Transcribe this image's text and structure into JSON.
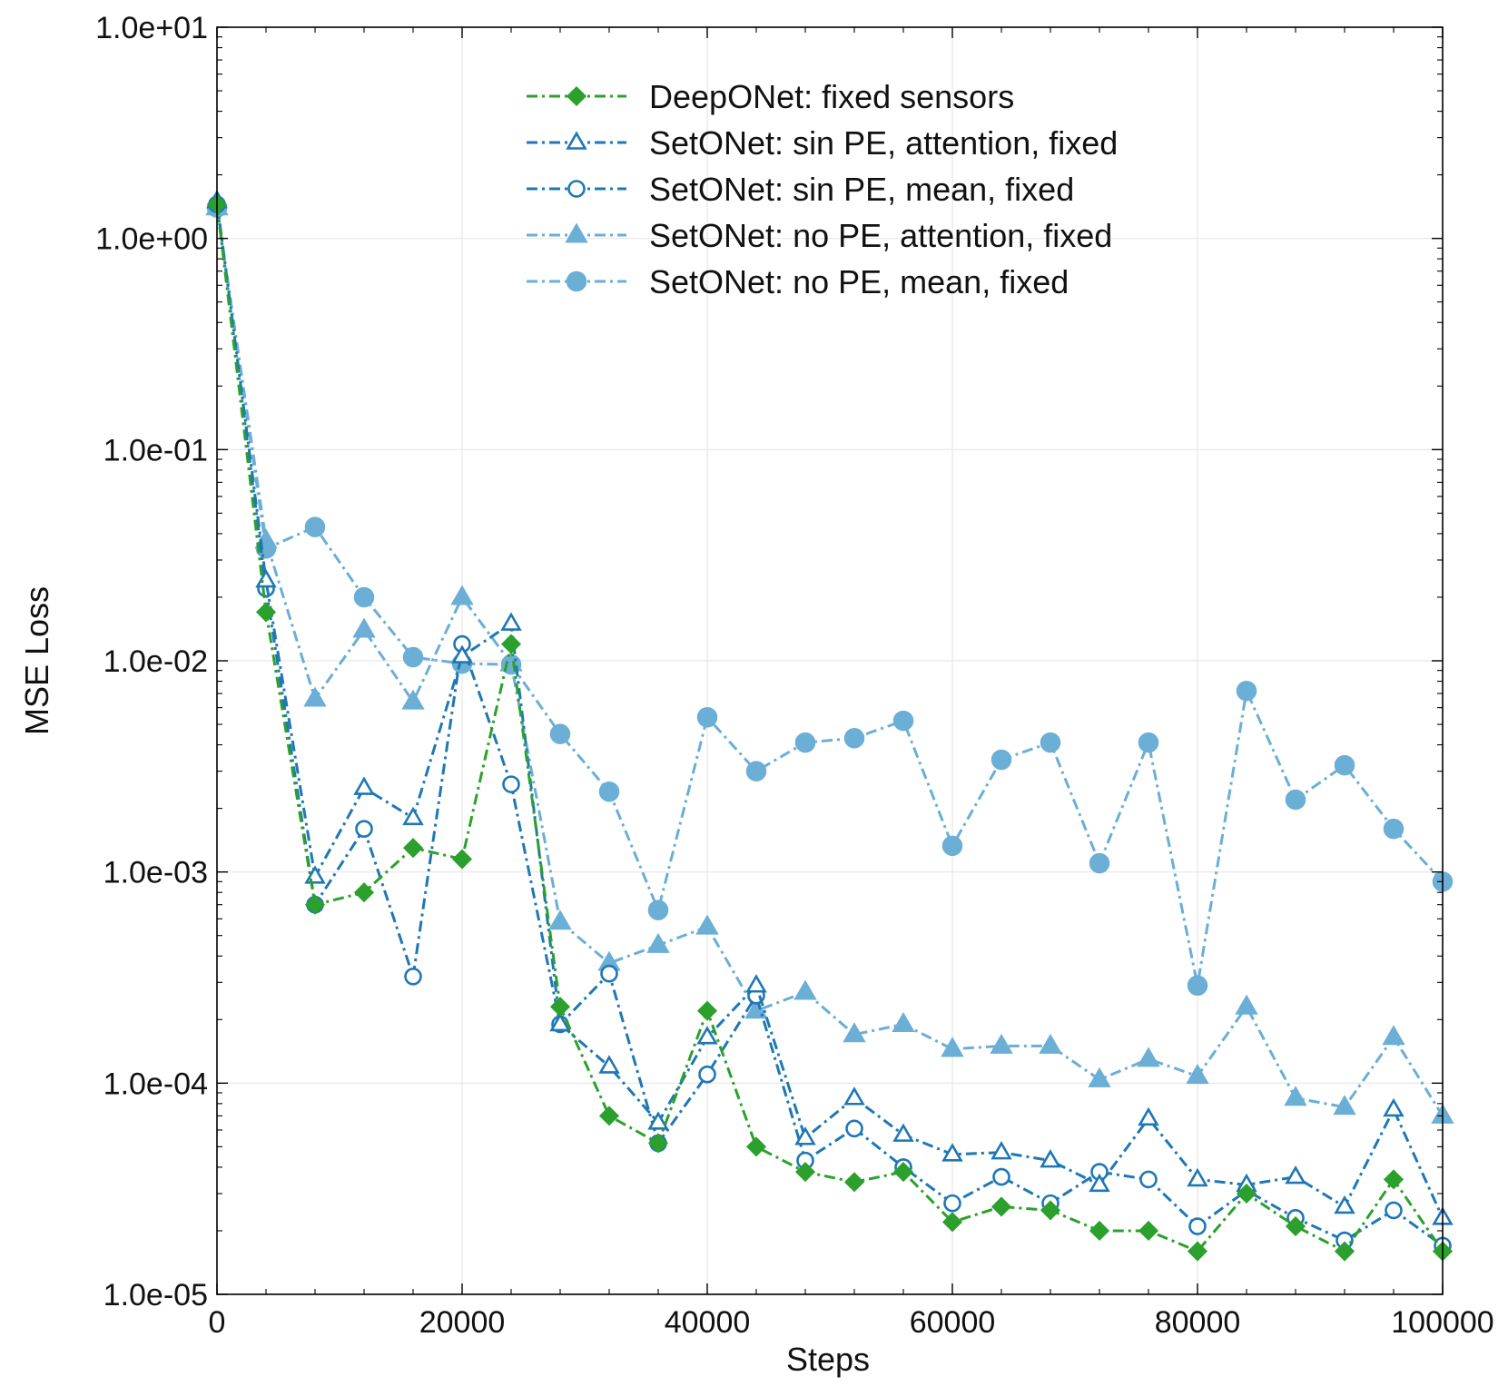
{
  "chart_data": {
    "type": "line",
    "xlabel": "Steps",
    "ylabel": "MSE Loss",
    "xlim": [
      0,
      100000
    ],
    "ylim": [
      1e-05,
      10
    ],
    "y_scale": "log",
    "grid": true,
    "legend_position": "top-center",
    "x_ticks": [
      0,
      20000,
      40000,
      60000,
      80000,
      100000
    ],
    "x_tick_labels": [
      "0",
      "20000",
      "40000",
      "60000",
      "80000",
      "100000"
    ],
    "y_ticks": [
      1e-05,
      0.0001,
      0.001,
      0.01,
      0.1,
      1,
      10
    ],
    "y_tick_labels": [
      "1.0e-05",
      "1.0e-04",
      "1.0e-03",
      "1.0e-02",
      "1.0e-01",
      "1.0e+00",
      "1.0e+01"
    ],
    "x": [
      0,
      4000,
      8000,
      12000,
      16000,
      20000,
      24000,
      28000,
      32000,
      36000,
      40000,
      44000,
      48000,
      52000,
      56000,
      60000,
      64000,
      68000,
      72000,
      76000,
      80000,
      84000,
      88000,
      92000,
      96000,
      100000
    ],
    "series": [
      {
        "name": "DeepONet: fixed sensors",
        "color": "#2ca02c",
        "marker": "diamond-filled",
        "values": [
          1.45,
          0.017,
          0.0007,
          0.0008,
          0.0013,
          0.00115,
          0.012,
          0.00023,
          7e-05,
          5.2e-05,
          0.00022,
          5e-05,
          3.8e-05,
          3.4e-05,
          3.8e-05,
          2.2e-05,
          2.6e-05,
          2.5e-05,
          2e-05,
          2e-05,
          1.6e-05,
          3e-05,
          2.1e-05,
          1.6e-05,
          3.5e-05,
          1.6e-05
        ]
      },
      {
        "name": "SetONet: sin PE, attention, fixed",
        "color": "#1f77b4",
        "marker": "triangle-open",
        "values": [
          1.5,
          0.024,
          0.00095,
          0.0025,
          0.0018,
          0.0105,
          0.015,
          0.00019,
          0.00012,
          6.5e-05,
          0.000165,
          0.00029,
          5.5e-05,
          8.5e-05,
          5.7e-05,
          4.6e-05,
          4.7e-05,
          4.3e-05,
          3.3e-05,
          6.8e-05,
          3.5e-05,
          3.3e-05,
          3.6e-05,
          2.6e-05,
          7.5e-05,
          2.3e-05
        ]
      },
      {
        "name": "SetONet: sin PE, mean, fixed",
        "color": "#1f77b4",
        "marker": "circle-open",
        "values": [
          1.45,
          0.022,
          0.0007,
          0.0016,
          0.00032,
          0.012,
          0.0026,
          0.00019,
          0.00033,
          5.2e-05,
          0.00011,
          0.00026,
          4.3e-05,
          6.1e-05,
          4e-05,
          2.7e-05,
          3.6e-05,
          2.7e-05,
          3.8e-05,
          3.5e-05,
          2.1e-05,
          3.1e-05,
          2.3e-05,
          1.8e-05,
          2.5e-05,
          1.7e-05
        ]
      },
      {
        "name": "SetONet: no PE, attention, fixed",
        "color": "#6baed6",
        "marker": "triangle-filled",
        "values": [
          1.4,
          0.037,
          0.0066,
          0.014,
          0.0064,
          0.02,
          0.0097,
          0.00058,
          0.00037,
          0.00045,
          0.00055,
          0.00022,
          0.00027,
          0.00017,
          0.00019,
          0.000145,
          0.00015,
          0.00015,
          0.000104,
          0.00013,
          0.000108,
          0.00023,
          8.5e-05,
          7.7e-05,
          0.000165,
          7e-05
        ]
      },
      {
        "name": "SetONet: no PE, mean, fixed",
        "color": "#6baed6",
        "marker": "circle-filled",
        "values": [
          1.4,
          0.034,
          0.043,
          0.02,
          0.0104,
          0.0097,
          0.0096,
          0.0045,
          0.0024,
          0.00066,
          0.0054,
          0.003,
          0.0041,
          0.0043,
          0.0052,
          0.00133,
          0.0034,
          0.0041,
          0.0011,
          0.0041,
          0.00029,
          0.0072,
          0.0022,
          0.0032,
          0.0016,
          0.0009
        ]
      }
    ]
  }
}
